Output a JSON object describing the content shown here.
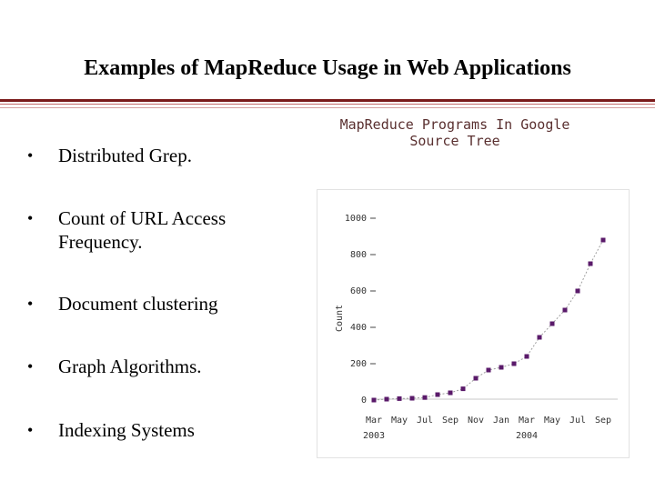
{
  "slide": {
    "title": "Examples of MapReduce Usage in Web Applications",
    "rule_colors": [
      "#7a1a1a",
      "#c46a6a",
      "#d6a0a0"
    ]
  },
  "bullets": [
    "Distributed Grep.",
    "Count of URL Access Frequency.",
    "Document clustering",
    "Graph Algorithms.",
    "Indexing Systems"
  ],
  "chart_data": {
    "type": "scatter",
    "title": "MapReduce Programs In Google Source Tree",
    "ylabel": "Count",
    "xlabel": "",
    "ylim": [
      0,
      1000
    ],
    "y_ticks": [
      "1000",
      "800",
      "600",
      "400",
      "200",
      "0"
    ],
    "x_tick_labels": [
      "Mar",
      "May",
      "Jul",
      "Sep",
      "Nov",
      "Jan",
      "Mar",
      "May",
      "Jul",
      "Sep"
    ],
    "x_year_labels": [
      "2003",
      "2004"
    ],
    "x": [
      "2003-03",
      "2003-04",
      "2003-05",
      "2003-06",
      "2003-07",
      "2003-08",
      "2003-09",
      "2003-10",
      "2003-11",
      "2003-12",
      "2004-01",
      "2004-02",
      "2004-03",
      "2004-04",
      "2004-05",
      "2004-06",
      "2004-07",
      "2004-08",
      "2004-09"
    ],
    "series": [
      {
        "values": [
          0,
          5,
          8,
          10,
          14,
          30,
          40,
          62,
          120,
          165,
          180,
          200,
          240,
          345,
          420,
          495,
          600,
          750,
          880
        ]
      }
    ],
    "marker_color": "#5a1a6a",
    "line_color": "#a0a0a0"
  }
}
